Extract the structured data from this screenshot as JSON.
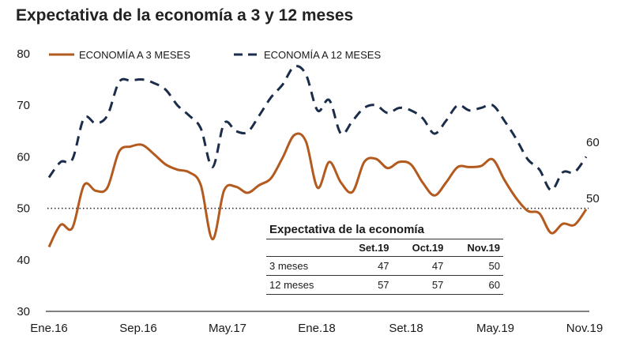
{
  "chart_data": {
    "type": "line",
    "title": "Expectativa de la economía a 3 y 12 meses",
    "ylim": [
      30,
      80
    ],
    "yticks": [
      30,
      40,
      50,
      60,
      70,
      80
    ],
    "xticks": [
      "Ene.16",
      "Sep.16",
      "May.17",
      "Ene.18",
      "Set.18",
      "May.19",
      "Nov.19"
    ],
    "reference_line": 50,
    "legend_position": "top",
    "series": [
      {
        "name": "ECONOMÍA A 3 MESES",
        "color": "#b35a1f",
        "style": "solid",
        "end_label": "50",
        "values": [
          42.5,
          46.8,
          46.2,
          54.5,
          53.4,
          54.0,
          61.0,
          62.0,
          62.3,
          60.5,
          58.5,
          57.5,
          57.0,
          54.5,
          44.0,
          53.5,
          54.2,
          53.0,
          54.5,
          55.8,
          59.8,
          64.2,
          63.0,
          54.0,
          59.0,
          55.0,
          53.2,
          59.0,
          59.6,
          57.8,
          59.0,
          58.5,
          55.0,
          52.5,
          55.0,
          58.0,
          58.0,
          58.2,
          59.5,
          55.5,
          52.0,
          49.5,
          49.0,
          45.2,
          47.0,
          46.8,
          49.8
        ]
      },
      {
        "name": "ECONOMÍA A 12 MESES",
        "color": "#1b2d4a",
        "style": "dashed",
        "end_label": "60",
        "values": [
          56.0,
          59.0,
          59.5,
          67.5,
          66.5,
          68.0,
          74.5,
          74.8,
          75.0,
          74.3,
          73.0,
          70.0,
          68.0,
          65.5,
          58.0,
          66.5,
          65.0,
          64.8,
          68.0,
          71.5,
          74.0,
          77.5,
          76.0,
          69.0,
          71.0,
          64.5,
          67.0,
          69.5,
          70.0,
          68.5,
          69.5,
          69.0,
          67.5,
          64.5,
          67.0,
          70.0,
          69.0,
          69.5,
          70.0,
          67.0,
          63.5,
          59.5,
          57.5,
          53.5,
          57.0,
          57.0,
          60.0
        ]
      }
    ],
    "table": {
      "title": "Expectativa de la economía",
      "columns": [
        "",
        "Set.19",
        "Oct.19",
        "Nov.19"
      ],
      "rows": [
        [
          "3 meses",
          "47",
          "47",
          "50"
        ],
        [
          "12 meses",
          "57",
          "57",
          "60"
        ]
      ]
    }
  }
}
